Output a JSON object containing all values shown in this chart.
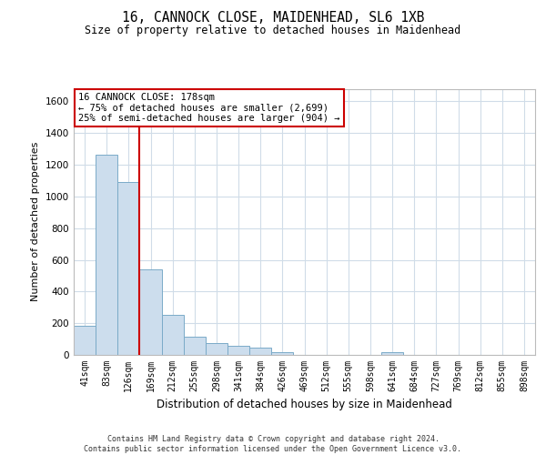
{
  "title1": "16, CANNOCK CLOSE, MAIDENHEAD, SL6 1XB",
  "title2": "Size of property relative to detached houses in Maidenhead",
  "xlabel": "Distribution of detached houses by size in Maidenhead",
  "ylabel": "Number of detached properties",
  "footer1": "Contains HM Land Registry data © Crown copyright and database right 2024.",
  "footer2": "Contains public sector information licensed under the Open Government Licence v3.0.",
  "categories": [
    "41sqm",
    "83sqm",
    "126sqm",
    "169sqm",
    "212sqm",
    "255sqm",
    "298sqm",
    "341sqm",
    "384sqm",
    "426sqm",
    "469sqm",
    "512sqm",
    "555sqm",
    "598sqm",
    "641sqm",
    "684sqm",
    "727sqm",
    "769sqm",
    "812sqm",
    "855sqm",
    "898sqm"
  ],
  "values": [
    185,
    1265,
    1090,
    540,
    250,
    115,
    75,
    55,
    45,
    20,
    0,
    0,
    0,
    0,
    20,
    0,
    0,
    0,
    0,
    0,
    0
  ],
  "bar_color": "#ccdded",
  "bar_edge_color": "#7aaac8",
  "annotation_box_text1": "16 CANNOCK CLOSE: 178sqm",
  "annotation_box_text2": "← 75% of detached houses are smaller (2,699)",
  "annotation_box_text3": "25% of semi-detached houses are larger (904) →",
  "annotation_line_color": "#cc0000",
  "annotation_box_edge_color": "#cc0000",
  "grid_color": "#d0dce8",
  "ylim": [
    0,
    1680
  ],
  "yticks": [
    0,
    200,
    400,
    600,
    800,
    1000,
    1200,
    1400,
    1600
  ],
  "property_bar_index": 3,
  "title1_fontsize": 10.5,
  "title2_fontsize": 8.5,
  "ylabel_fontsize": 8,
  "xlabel_fontsize": 8.5,
  "tick_fontsize": 7,
  "annotation_fontsize": 7.5,
  "footer_fontsize": 6
}
